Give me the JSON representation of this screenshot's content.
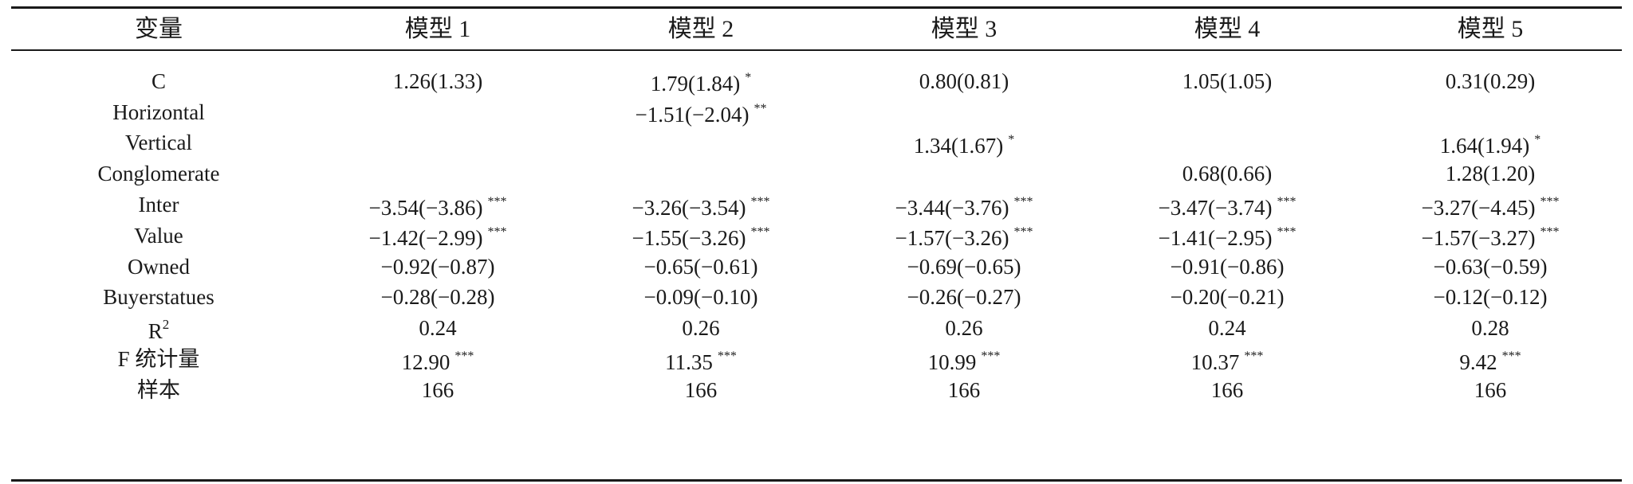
{
  "table": {
    "headers": [
      "变量",
      "模型 1",
      "模型 2",
      "模型 3",
      "模型 4",
      "模型 5"
    ],
    "rows": [
      {
        "var": "C",
        "cells": [
          {
            "v": "1.26(1.33)",
            "s": ""
          },
          {
            "v": "1.79(1.84)",
            "s": "*"
          },
          {
            "v": "0.80(0.81)",
            "s": ""
          },
          {
            "v": "1.05(1.05)",
            "s": ""
          },
          {
            "v": "0.31(0.29)",
            "s": ""
          }
        ]
      },
      {
        "var": "Horizontal",
        "cells": [
          {
            "v": "",
            "s": ""
          },
          {
            "v": "−1.51(−2.04)",
            "s": "**"
          },
          {
            "v": "",
            "s": ""
          },
          {
            "v": "",
            "s": ""
          },
          {
            "v": "",
            "s": ""
          }
        ]
      },
      {
        "var": "Vertical",
        "cells": [
          {
            "v": "",
            "s": ""
          },
          {
            "v": "",
            "s": ""
          },
          {
            "v": "1.34(1.67)",
            "s": "*"
          },
          {
            "v": "",
            "s": ""
          },
          {
            "v": "1.64(1.94)",
            "s": "*"
          }
        ]
      },
      {
        "var": "Conglomerate",
        "cells": [
          {
            "v": "",
            "s": ""
          },
          {
            "v": "",
            "s": ""
          },
          {
            "v": "",
            "s": ""
          },
          {
            "v": "0.68(0.66)",
            "s": ""
          },
          {
            "v": "1.28(1.20)",
            "s": ""
          }
        ]
      },
      {
        "var": "Inter",
        "cells": [
          {
            "v": "−3.54(−3.86)",
            "s": "***"
          },
          {
            "v": "−3.26(−3.54)",
            "s": "***"
          },
          {
            "v": "−3.44(−3.76)",
            "s": "***"
          },
          {
            "v": "−3.47(−3.74)",
            "s": "***"
          },
          {
            "v": "−3.27(−4.45)",
            "s": "***"
          }
        ]
      },
      {
        "var": "Value",
        "cells": [
          {
            "v": "−1.42(−2.99)",
            "s": "***"
          },
          {
            "v": "−1.55(−3.26)",
            "s": "***"
          },
          {
            "v": "−1.57(−3.26)",
            "s": "***"
          },
          {
            "v": "−1.41(−2.95)",
            "s": "***"
          },
          {
            "v": "−1.57(−3.27)",
            "s": "***"
          }
        ]
      },
      {
        "var": "Owned",
        "cells": [
          {
            "v": "−0.92(−0.87)",
            "s": ""
          },
          {
            "v": "−0.65(−0.61)",
            "s": ""
          },
          {
            "v": "−0.69(−0.65)",
            "s": ""
          },
          {
            "v": "−0.91(−0.86)",
            "s": ""
          },
          {
            "v": "−0.63(−0.59)",
            "s": ""
          }
        ]
      },
      {
        "var": "Buyerstatues",
        "cells": [
          {
            "v": "−0.28(−0.28)",
            "s": ""
          },
          {
            "v": "−0.09(−0.10)",
            "s": ""
          },
          {
            "v": "−0.26(−0.27)",
            "s": ""
          },
          {
            "v": "−0.20(−0.21)",
            "s": ""
          },
          {
            "v": "−0.12(−0.12)",
            "s": ""
          }
        ]
      },
      {
        "var": "R",
        "sup": "2",
        "cells": [
          {
            "v": "0.24",
            "s": ""
          },
          {
            "v": "0.26",
            "s": ""
          },
          {
            "v": "0.26",
            "s": ""
          },
          {
            "v": "0.24",
            "s": ""
          },
          {
            "v": "0.28",
            "s": ""
          }
        ]
      },
      {
        "var": "F 统计量",
        "cells": [
          {
            "v": "12.90",
            "s": "***"
          },
          {
            "v": "11.35",
            "s": "***"
          },
          {
            "v": "10.99",
            "s": "***"
          },
          {
            "v": "10.37",
            "s": "***"
          },
          {
            "v": "9.42",
            "s": "***"
          }
        ]
      },
      {
        "var": "样本",
        "cells": [
          {
            "v": "166",
            "s": ""
          },
          {
            "v": "166",
            "s": ""
          },
          {
            "v": "166",
            "s": ""
          },
          {
            "v": "166",
            "s": ""
          },
          {
            "v": "166",
            "s": ""
          }
        ]
      }
    ]
  }
}
